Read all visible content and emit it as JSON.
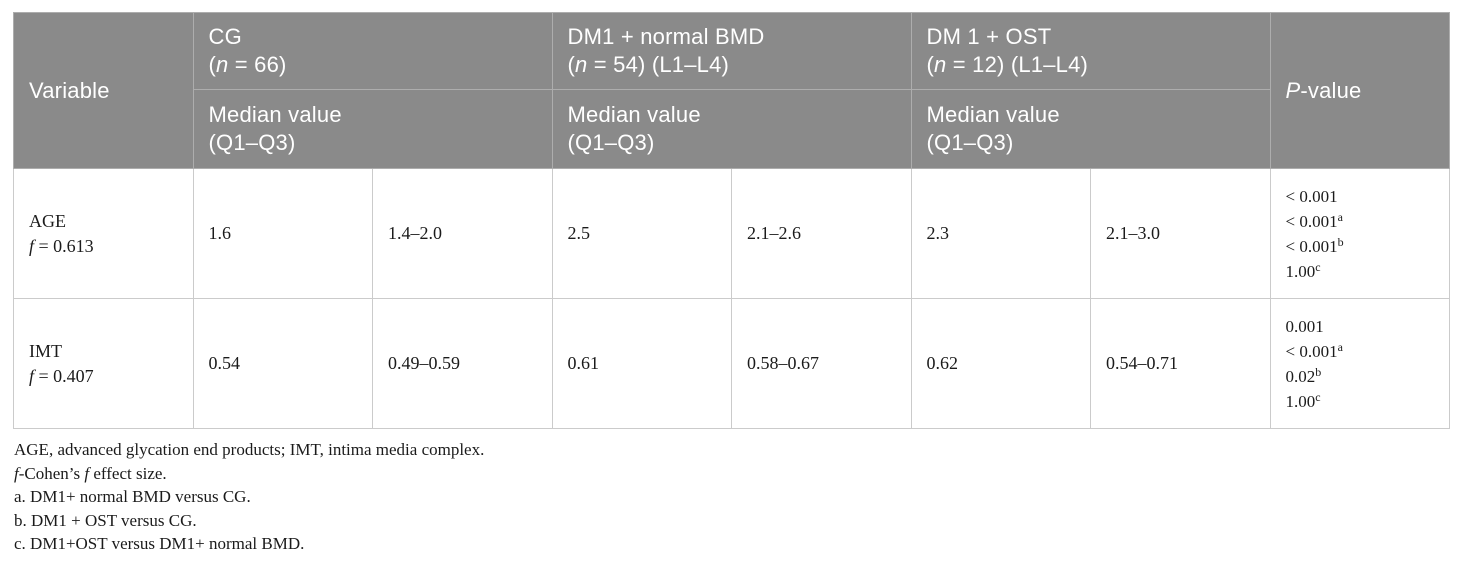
{
  "colors": {
    "header_background": "#8a8a8a",
    "header_text": "#ffffff",
    "header_border": "#adadad",
    "body_border": "#cbcbcb",
    "body_text": "#1b1b1b"
  },
  "table": {
    "header": {
      "variable_label": "Variable",
      "groups": [
        {
          "name": "CG",
          "paren_open": "(",
          "n_symbol": "n",
          "n_rest": " = 66)"
        },
        {
          "name": "DM1 + normal BMD",
          "paren_open": "(",
          "n_symbol": "n",
          "n_rest": " = 54) (L1–L4)"
        },
        {
          "name": "DM 1 + OST",
          "paren_open": "(",
          "n_symbol": "n",
          "n_rest": " = 12) (L1–L4)"
        }
      ],
      "median_line1": "Median value",
      "median_line2": "(Q1–Q3)",
      "p_symbol": "P",
      "p_rest": "-value"
    },
    "rows": [
      {
        "variable": "AGE",
        "f_symbol": "f",
        "f_value": " = 0.613",
        "cells": [
          "1.6",
          "1.4–2.0",
          "2.5",
          "2.1–2.6",
          "2.3",
          "2.1–3.0"
        ],
        "p_values": [
          {
            "text": "< 0.001"
          },
          {
            "text": "< 0.001",
            "sup": "a"
          },
          {
            "text": "< 0.001",
            "sup": "b"
          },
          {
            "text": "1.00",
            "sup": "c"
          }
        ]
      },
      {
        "variable": "IMT",
        "f_symbol": "f",
        "f_value": " = 0.407",
        "cells": [
          "0.54",
          "0.49–0.59",
          "0.61",
          "0.58–0.67",
          "0.62",
          "0.54–0.71"
        ],
        "p_values": [
          {
            "text": "0.001"
          },
          {
            "text": "< 0.001",
            "sup": "a"
          },
          {
            "text": "0.02",
            "sup": "b"
          },
          {
            "text": "1.00",
            "sup": "c"
          }
        ]
      }
    ]
  },
  "footnotes": {
    "abbrev": "AGE, advanced glycation end products; IMT, intima media complex.",
    "cohen_f1": "f",
    "cohen_mid": "-Cohen’s ",
    "cohen_f2": "f",
    "cohen_rest": " effect size.",
    "note_a": "a. DM1+ normal BMD versus CG.",
    "note_b": "b. DM1 + OST versus CG.",
    "note_c": "c. DM1+OST versus DM1+ normal BMD."
  }
}
